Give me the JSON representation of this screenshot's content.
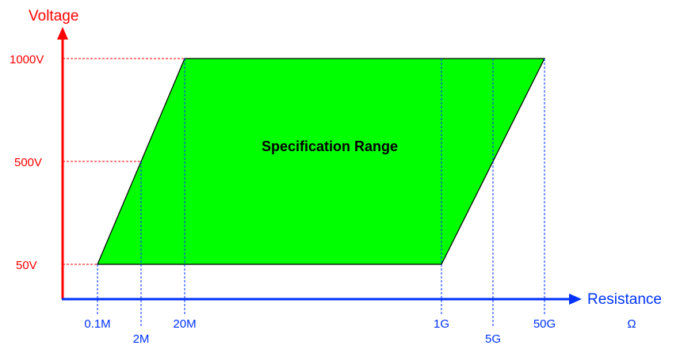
{
  "colors": {
    "axis_y": "#ff0000",
    "axis_x": "#0033ff",
    "region_fill": "#00ff00",
    "region_stroke": "#000000",
    "guide_red": "#ff0000",
    "guide_blue": "#0033ff"
  },
  "labels": {
    "y_axis": "Voltage",
    "x_axis": "Resistance",
    "unit": "Ω",
    "region": "Specification Range"
  },
  "voltages": {
    "v1000": "1000V",
    "v500": "500V",
    "v50": "50V"
  },
  "resistances": {
    "r01m": "0.1M",
    "r2m": "2M",
    "r20m": "20M",
    "r1g": "1G",
    "r5g": "5G",
    "r50g": "50G"
  }
}
